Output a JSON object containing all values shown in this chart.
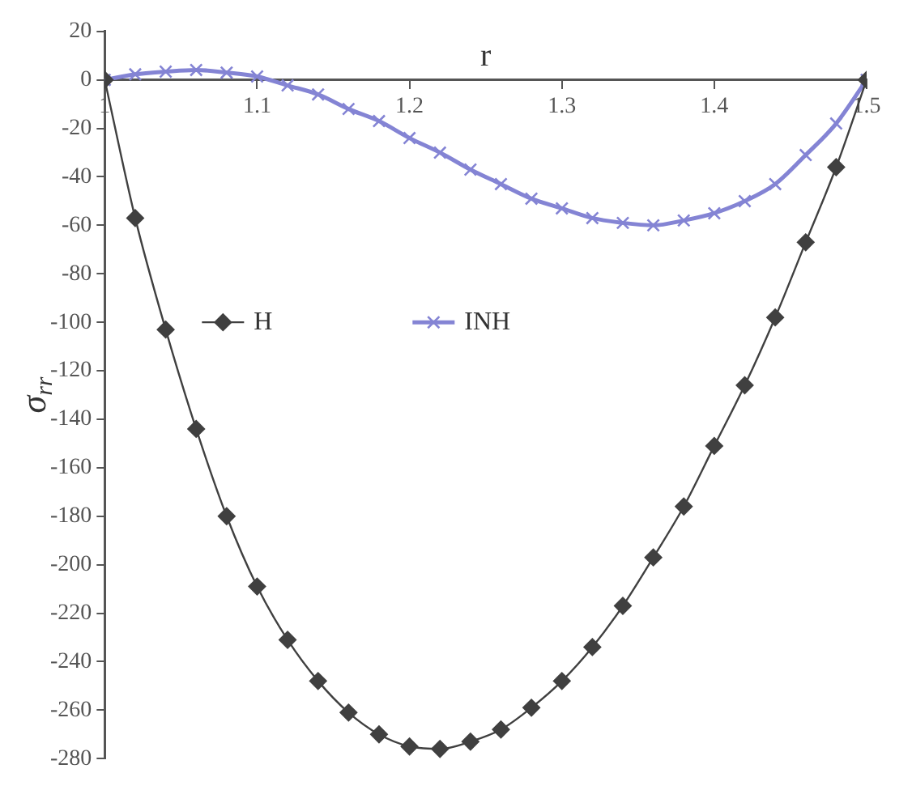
{
  "chart_data": {
    "type": "line",
    "xlabel": "r",
    "ylabel": "σ$_{rr}$",
    "x": [
      1.0,
      1.02,
      1.04,
      1.06,
      1.08,
      1.1,
      1.12,
      1.14,
      1.16,
      1.18,
      1.2,
      1.22,
      1.24,
      1.26,
      1.28,
      1.3,
      1.32,
      1.34,
      1.36,
      1.38,
      1.4,
      1.42,
      1.44,
      1.46,
      1.48,
      1.5
    ],
    "series": [
      {
        "name": "H",
        "color": "#404040",
        "marker": "diamond",
        "values": [
          0,
          -57,
          -103,
          -144,
          -180,
          -209,
          -231,
          -248,
          -261,
          -270,
          -275,
          -276,
          -273,
          -268,
          -259,
          -248,
          -234,
          -217,
          -197,
          -176,
          -151,
          -126,
          -98,
          -67,
          -36,
          0
        ]
      },
      {
        "name": "INH",
        "color": "#8484d4",
        "marker": "cross",
        "values": [
          0,
          2.3,
          3.4,
          4.1,
          3,
          1.4,
          -2.3,
          -6,
          -12,
          -17,
          -24,
          -30,
          -37,
          -43,
          -49,
          -53,
          -57,
          -59,
          -60,
          -58,
          -55,
          -50,
          -43,
          -31,
          -18,
          0
        ]
      }
    ],
    "xlim": [
      1,
      1.5
    ],
    "xticks": [
      1,
      1.1,
      1.2,
      1.3,
      1.4,
      1.5
    ],
    "ylim": [
      -280,
      20
    ],
    "yticks": [
      -280,
      -260,
      -240,
      -220,
      -200,
      -180,
      -160,
      -140,
      -120,
      -100,
      -80,
      -60,
      -40,
      -20,
      0,
      20
    ],
    "grid": false,
    "legend": "left"
  }
}
